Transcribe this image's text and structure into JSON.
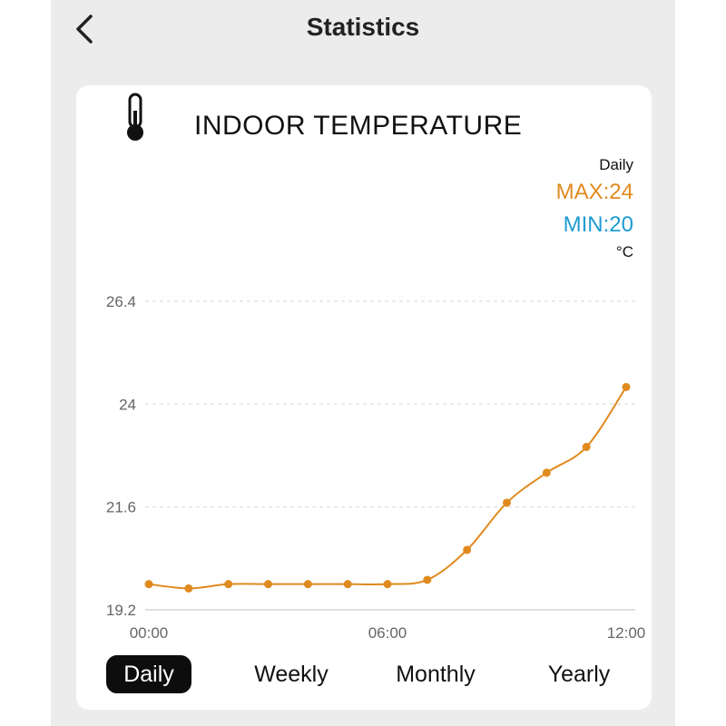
{
  "header": {
    "title": "Statistics",
    "back_icon": "chevron-left-icon"
  },
  "card": {
    "icon": "thermometer-icon",
    "title": "INDOOR TEMPERATURE",
    "period": "Daily",
    "max_label": "MAX:24",
    "min_label": "MIN:20",
    "unit": "°C"
  },
  "colors": {
    "line": "#e08a1e",
    "max": "#e08a1e",
    "min": "#1d9bd1",
    "active_tab_bg": "#0d0d0d"
  },
  "chart_data": {
    "type": "line",
    "x": [
      0,
      1,
      2,
      3,
      4,
      5,
      6,
      7,
      8,
      9,
      10,
      11,
      12
    ],
    "xticks": [
      0,
      6,
      12
    ],
    "xtick_labels": [
      "00:00",
      "06:00",
      "12:00"
    ],
    "values": [
      19.8,
      19.7,
      19.8,
      19.8,
      19.8,
      19.8,
      19.8,
      19.9,
      20.6,
      21.7,
      22.4,
      23.0,
      24.4
    ],
    "yticks": [
      19.2,
      21.6,
      24,
      26.4
    ],
    "ytick_labels": [
      "19.2",
      "21.6",
      "24",
      "26.4"
    ],
    "ylim": [
      19.2,
      26.4
    ],
    "xlim": [
      0,
      12
    ],
    "grid": true
  },
  "tabs": [
    {
      "label": "Daily",
      "active": true
    },
    {
      "label": "Weekly",
      "active": false
    },
    {
      "label": "Monthly",
      "active": false
    },
    {
      "label": "Yearly",
      "active": false
    }
  ]
}
